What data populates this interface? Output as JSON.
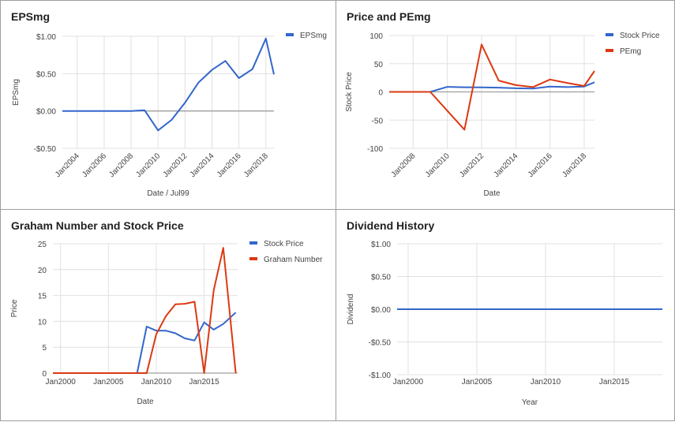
{
  "panels": {
    "eps": {
      "title": "EPSmg"
    },
    "pe": {
      "title": "Price and PEmg"
    },
    "graham": {
      "title": "Graham Number and Stock Price"
    },
    "div": {
      "title": "Dividend History"
    }
  },
  "colors": {
    "blue": "#3366cc",
    "red": "#dc3912",
    "grid": "#e0e0e0",
    "baseline": "#9e9e9e",
    "text": "#444444"
  },
  "chart_data": [
    {
      "type": "line",
      "title": "EPSmg",
      "xlabel": "Date / Jul99",
      "ylabel": "EPSmg",
      "xlim": [
        2002.9,
        2018.6
      ],
      "ylim": [
        -0.5,
        1.0
      ],
      "yticks": [
        -0.5,
        0,
        0.5,
        1.0
      ],
      "ytick_labels": [
        "-$0.50",
        "$0.00",
        "$0.50",
        "$1.00"
      ],
      "xticks": [
        2004,
        2006,
        2008,
        2010,
        2012,
        2014,
        2016,
        2018
      ],
      "xtick_labels": [
        "Jan2004",
        "Jan2006",
        "Jan2008",
        "Jan2010",
        "Jan2012",
        "Jan2014",
        "Jan2016",
        "Jan2018"
      ],
      "legend": "right",
      "grid": true,
      "series": [
        {
          "name": "EPSmg",
          "color": "#3366cc",
          "x": [
            2002.9,
            2004,
            2005,
            2006,
            2007,
            2008,
            2009,
            2010,
            2011,
            2012,
            2013,
            2014,
            2015,
            2016,
            2017,
            2018,
            2018.6
          ],
          "y": [
            0,
            0,
            0,
            0,
            0,
            0,
            0.01,
            -0.26,
            -0.12,
            0.11,
            0.38,
            0.55,
            0.67,
            0.44,
            0.56,
            0.97,
            0.49
          ]
        }
      ]
    },
    {
      "type": "line",
      "title": "Price and PEmg",
      "xlabel": "Date",
      "ylabel": "Stock Price",
      "xlim": [
        2006.6,
        2018.6
      ],
      "ylim": [
        -100,
        100
      ],
      "yticks": [
        -100,
        -50,
        0,
        50,
        100
      ],
      "ytick_labels": [
        "-100",
        "-50",
        "0",
        "50",
        "100"
      ],
      "xticks": [
        2008,
        2010,
        2012,
        2014,
        2016,
        2018
      ],
      "xtick_labels": [
        "Jan2008",
        "Jan2010",
        "Jan2012",
        "Jan2014",
        "Jan2016",
        "Jan2018"
      ],
      "legend": "right",
      "grid": true,
      "series": [
        {
          "name": "Stock Price",
          "color": "#3366cc",
          "x": [
            2006.6,
            2009,
            2010,
            2011,
            2012,
            2013,
            2014,
            2015,
            2016,
            2017,
            2018,
            2018.6
          ],
          "y": [
            0,
            0,
            9,
            8.2,
            8,
            7.5,
            6.5,
            6,
            9.5,
            8.5,
            9.5,
            17
          ]
        },
        {
          "name": "PEmg",
          "color": "#dc3912",
          "x": [
            2006.6,
            2009,
            2011,
            2012,
            2013,
            2014,
            2015,
            2016,
            2017,
            2018,
            2018.6
          ],
          "y": [
            0,
            0,
            -67,
            84,
            20,
            12,
            8.5,
            22,
            16,
            10.5,
            37
          ]
        }
      ]
    },
    {
      "type": "line",
      "title": "Graham Number and Stock Price",
      "xlabel": "Date",
      "ylabel": "Price",
      "xlim": [
        1999.2,
        2018.5
      ],
      "ylim": [
        0,
        25
      ],
      "yticks": [
        0,
        5,
        10,
        15,
        20,
        25
      ],
      "ytick_labels": [
        "0",
        "5",
        "10",
        "15",
        "20",
        "25"
      ],
      "xticks": [
        2000,
        2005,
        2010,
        2015
      ],
      "xtick_labels": [
        "Jan2000",
        "Jan2005",
        "Jan2010",
        "Jan2015"
      ],
      "legend": "right",
      "grid": true,
      "series": [
        {
          "name": "Stock Price",
          "color": "#3366cc",
          "x": [
            1999.2,
            2008,
            2009,
            2010,
            2011,
            2012,
            2013,
            2014,
            2015,
            2016,
            2017,
            2018.3
          ],
          "y": [
            0,
            0,
            9,
            8.2,
            8.2,
            7.7,
            6.7,
            6.3,
            9.8,
            8.4,
            9.5,
            11.7
          ]
        },
        {
          "name": "Graham Number",
          "color": "#dc3912",
          "x": [
            1999.2,
            2009,
            2010,
            2011,
            2012,
            2013,
            2014,
            2015,
            2016,
            2017,
            2018.3
          ],
          "y": [
            0,
            0,
            7.5,
            11,
            13.3,
            13.4,
            13.8,
            0,
            16,
            24.2,
            0
          ]
        }
      ]
    },
    {
      "type": "line",
      "title": "Dividend History",
      "xlabel": "Year",
      "ylabel": "Dividend",
      "xlim": [
        1999.2,
        2018.5
      ],
      "ylim": [
        -1,
        1
      ],
      "yticks": [
        -1,
        -0.5,
        0,
        0.5,
        1
      ],
      "ytick_labels": [
        "-$1.00",
        "-$0.50",
        "$0.00",
        "$0.50",
        "$1.00"
      ],
      "xticks": [
        2000,
        2005,
        2010,
        2015
      ],
      "xtick_labels": [
        "Jan2000",
        "Jan2005",
        "Jan2010",
        "Jan2015"
      ],
      "legend": "none",
      "grid": true,
      "series": [
        {
          "name": "",
          "color": "#3366cc",
          "x": [
            1999.2,
            2018.5
          ],
          "y": [
            0,
            0
          ]
        }
      ]
    }
  ]
}
